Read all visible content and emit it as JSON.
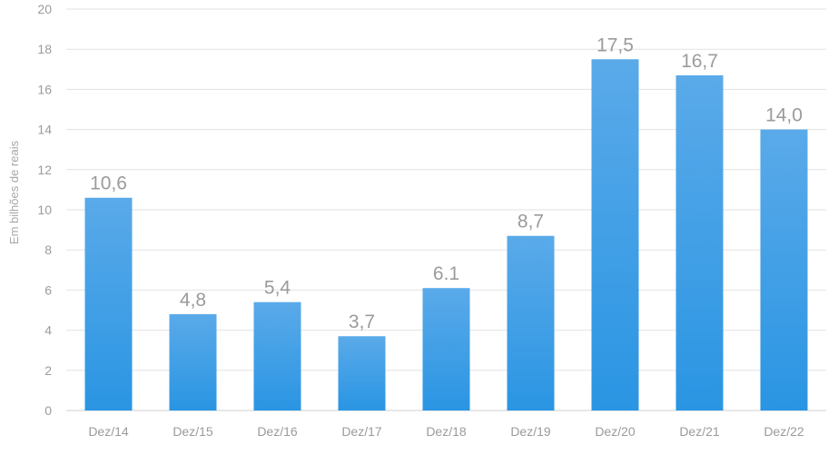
{
  "chart_data": {
    "type": "bar",
    "categories": [
      "Dez/14",
      "Dez/15",
      "Dez/16",
      "Dez/17",
      "Dez/18",
      "Dez/19",
      "Dez/20",
      "Dez/21",
      "Dez/22"
    ],
    "values": [
      10.6,
      4.8,
      5.4,
      3.7,
      6.1,
      8.7,
      17.5,
      16.7,
      14.0
    ],
    "data_labels": [
      "10,6",
      "4,8",
      "5,4",
      "3,7",
      "6.1",
      "8,7",
      "17,5",
      "16,7",
      "14,0"
    ],
    "ylabel": "Em bilhões de reais",
    "xlabel": "",
    "ylim": [
      0,
      20
    ],
    "yticks": [
      0,
      2,
      4,
      6,
      8,
      10,
      12,
      14,
      16,
      18,
      20
    ],
    "grid": true,
    "colors": {
      "bar_top": "#5aaae9",
      "bar_bottom": "#2a95e3",
      "text": "#9b9b9b"
    }
  }
}
